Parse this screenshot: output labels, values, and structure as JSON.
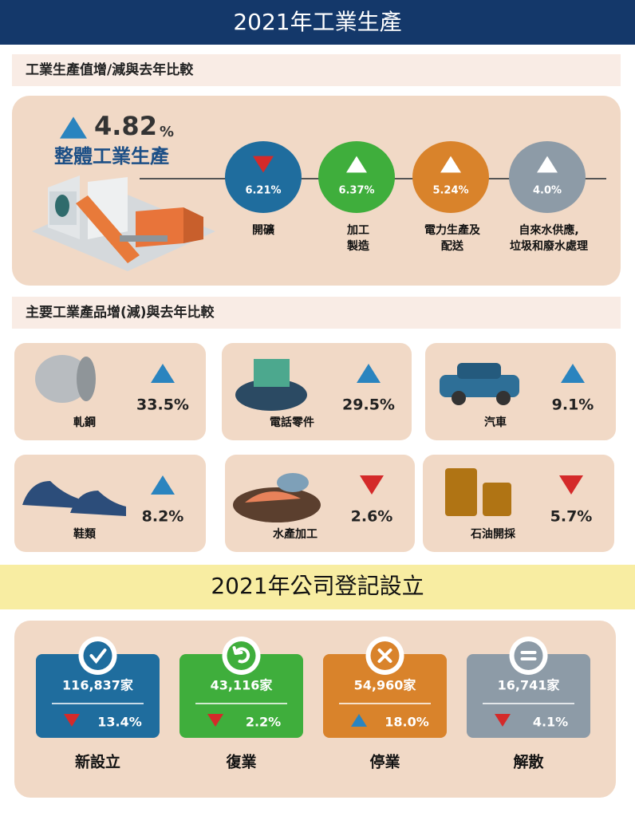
{
  "header": {
    "title": "2021年工業生產"
  },
  "production": {
    "heading": "工業生產值增/減與去年比較",
    "overall": {
      "change": "4.82",
      "unit": "%",
      "direction": "up",
      "label": "整體工業生產"
    },
    "sectors": [
      {
        "change": "6.21%",
        "direction": "down",
        "label": [
          "開礦"
        ],
        "color": "#1f6d9e"
      },
      {
        "change": "6.37%",
        "direction": "up",
        "label": [
          "加工",
          "製造"
        ],
        "color": "#3fae3c"
      },
      {
        "change": "5.24%",
        "direction": "up",
        "label": [
          "電力生產及",
          "配送"
        ],
        "color": "#d9832b"
      },
      {
        "change": "4.0%",
        "direction": "up",
        "label": [
          "自來水供應,",
          "垃圾和廢水處理"
        ],
        "color": "#8d9ba7"
      }
    ]
  },
  "products": {
    "heading": "主要工業產品增(減)與去年比較",
    "items": [
      {
        "label": "軋鋼",
        "change": "33.5%",
        "direction": "up"
      },
      {
        "label": "電話零件",
        "change": "29.5%",
        "direction": "up"
      },
      {
        "label": "汽車",
        "change": "9.1%",
        "direction": "up"
      },
      {
        "label": "鞋類",
        "change": "8.2%",
        "direction": "up"
      },
      {
        "label": "水產加工",
        "change": "2.6%",
        "direction": "down"
      },
      {
        "label": "石油開採",
        "change": "5.7%",
        "direction": "down"
      }
    ]
  },
  "companies": {
    "title": "2021年公司登記設立",
    "items": [
      {
        "count": "116,837家",
        "change": "13.4%",
        "direction": "down",
        "label": "新設立",
        "color": "#1f6d9e"
      },
      {
        "count": "43,116家",
        "change": "2.2%",
        "direction": "down",
        "label": "復業",
        "color": "#3fae3c"
      },
      {
        "count": "54,960家",
        "change": "18.0%",
        "direction": "up",
        "label": "停業",
        "color": "#d9832b"
      },
      {
        "count": "16,741家",
        "change": "4.1%",
        "direction": "down",
        "label": "解散",
        "color": "#8d9ba7"
      }
    ]
  }
}
